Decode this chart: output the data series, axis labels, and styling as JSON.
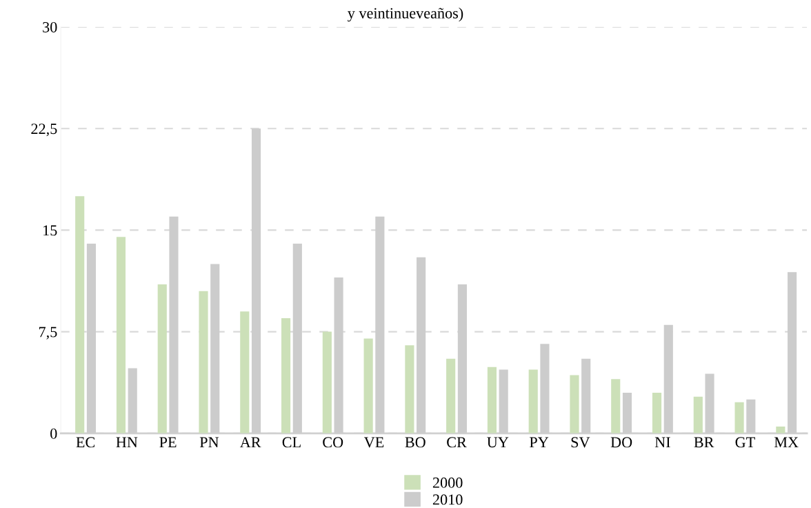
{
  "chart_data": {
    "type": "bar",
    "title": "y veintinueveaños)",
    "categories": [
      "EC",
      "HN",
      "PE",
      "PN",
      "AR",
      "CL",
      "CO",
      "VE",
      "BO",
      "CR",
      "UY",
      "PY",
      "SV",
      "DO",
      "NI",
      "BR",
      "GT",
      "MX"
    ],
    "series": [
      {
        "name": "2000",
        "color": "#cce0b8",
        "values": [
          17.5,
          14.5,
          11.0,
          10.5,
          9.0,
          8.5,
          7.5,
          7.0,
          6.5,
          5.5,
          4.9,
          4.7,
          4.3,
          4.0,
          3.0,
          2.7,
          2.3,
          0.5
        ]
      },
      {
        "name": "2010",
        "color": "#cccccc",
        "values": [
          14.0,
          4.8,
          16.0,
          12.5,
          22.5,
          14.0,
          11.5,
          16.0,
          13.0,
          11.0,
          4.7,
          6.6,
          5.5,
          3.0,
          8.0,
          4.4,
          2.5,
          11.9
        ]
      }
    ],
    "ylim": [
      0,
      30
    ],
    "yticks": [
      0,
      {
        "value": 7.5,
        "label": "7,5"
      },
      15,
      {
        "value": 22.5,
        "label": "22,5"
      },
      30
    ],
    "grid": "y",
    "legend": "bottom"
  }
}
